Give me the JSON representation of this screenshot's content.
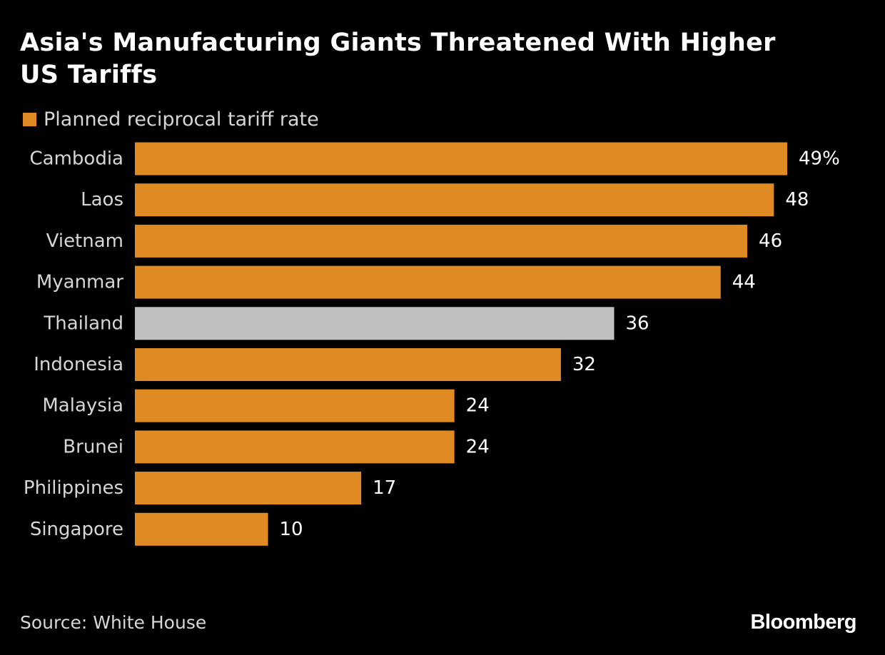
{
  "title": "Asia's Manufacturing Giants Threatened With Higher US Tariffs",
  "legend": {
    "label": "Planned reciprocal tariff rate"
  },
  "colors": {
    "background": "#000000",
    "primary_bar": "#e08a23",
    "highlight_bar": "#c0c0c0",
    "label_text": "#d6d6d6",
    "value_text": "#ffffff"
  },
  "chart_data": {
    "type": "bar",
    "orientation": "horizontal",
    "categories": [
      "Cambodia",
      "Laos",
      "Vietnam",
      "Myanmar",
      "Thailand",
      "Indonesia",
      "Malaysia",
      "Brunei",
      "Philippines",
      "Singapore"
    ],
    "series": [
      {
        "name": "Planned reciprocal tariff rate",
        "values": [
          49,
          48,
          46,
          44,
          36,
          32,
          24,
          24,
          17,
          10
        ]
      }
    ],
    "value_labels": [
      "49%",
      "48",
      "46",
      "44",
      "36",
      "32",
      "24",
      "24",
      "17",
      "10"
    ],
    "highlighted_category": "Thailand",
    "unit": "%",
    "xlim": [
      0,
      49
    ],
    "grid": false,
    "legend_position": "top-left"
  },
  "footer": {
    "source": "Source: White House",
    "brand": "Bloomberg"
  }
}
